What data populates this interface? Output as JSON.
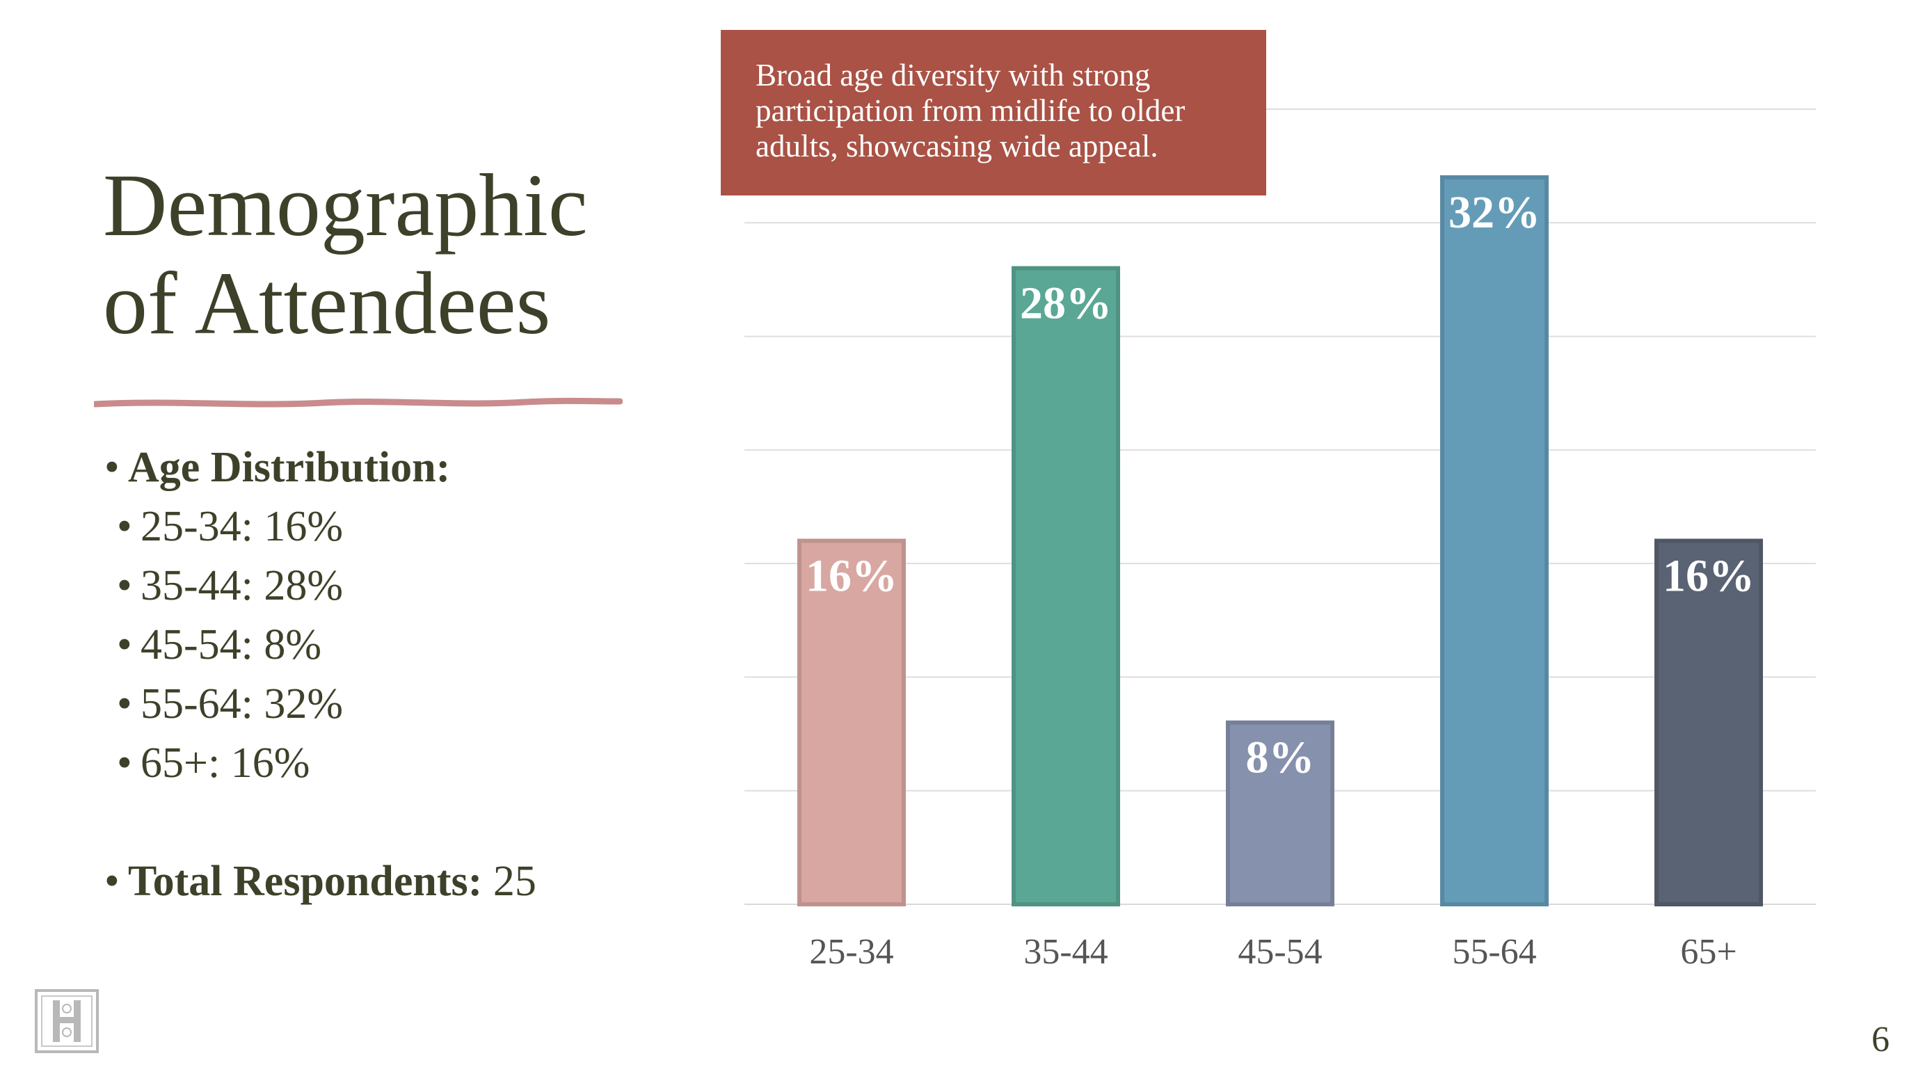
{
  "slide": {
    "title_line1": "Demographic",
    "title_line2": "of Attendees",
    "callout": "Broad age diversity with strong participation from midlife to older adults, showcasing wide appeal.",
    "page_number": "6"
  },
  "bullets": {
    "age_heading": "Age Distribution:",
    "age_items": [
      "25-34: 16%",
      "35-44: 28%",
      "45-54: 8%",
      "55-64: 32%",
      "65+: 16%"
    ],
    "total_label": "Total Respondents:",
    "total_value": "25"
  },
  "colors": {
    "title": "#3e4129",
    "callout_bg": "#a95245",
    "underline": "#c98b8b"
  },
  "chart_data": {
    "type": "bar",
    "categories": [
      "25-34",
      "35-44",
      "45-54",
      "55-64",
      "65+"
    ],
    "values": [
      16,
      28,
      8,
      32,
      16
    ],
    "data_labels": [
      "16%",
      "28%",
      "8%",
      "32%",
      "16%"
    ],
    "colors": [
      "#d8a7a1",
      "#5aa795",
      "#8591ad",
      "#649cb8",
      "#5a6373"
    ],
    "ylim": [
      0,
      35
    ],
    "grid": true,
    "legend": "none"
  }
}
